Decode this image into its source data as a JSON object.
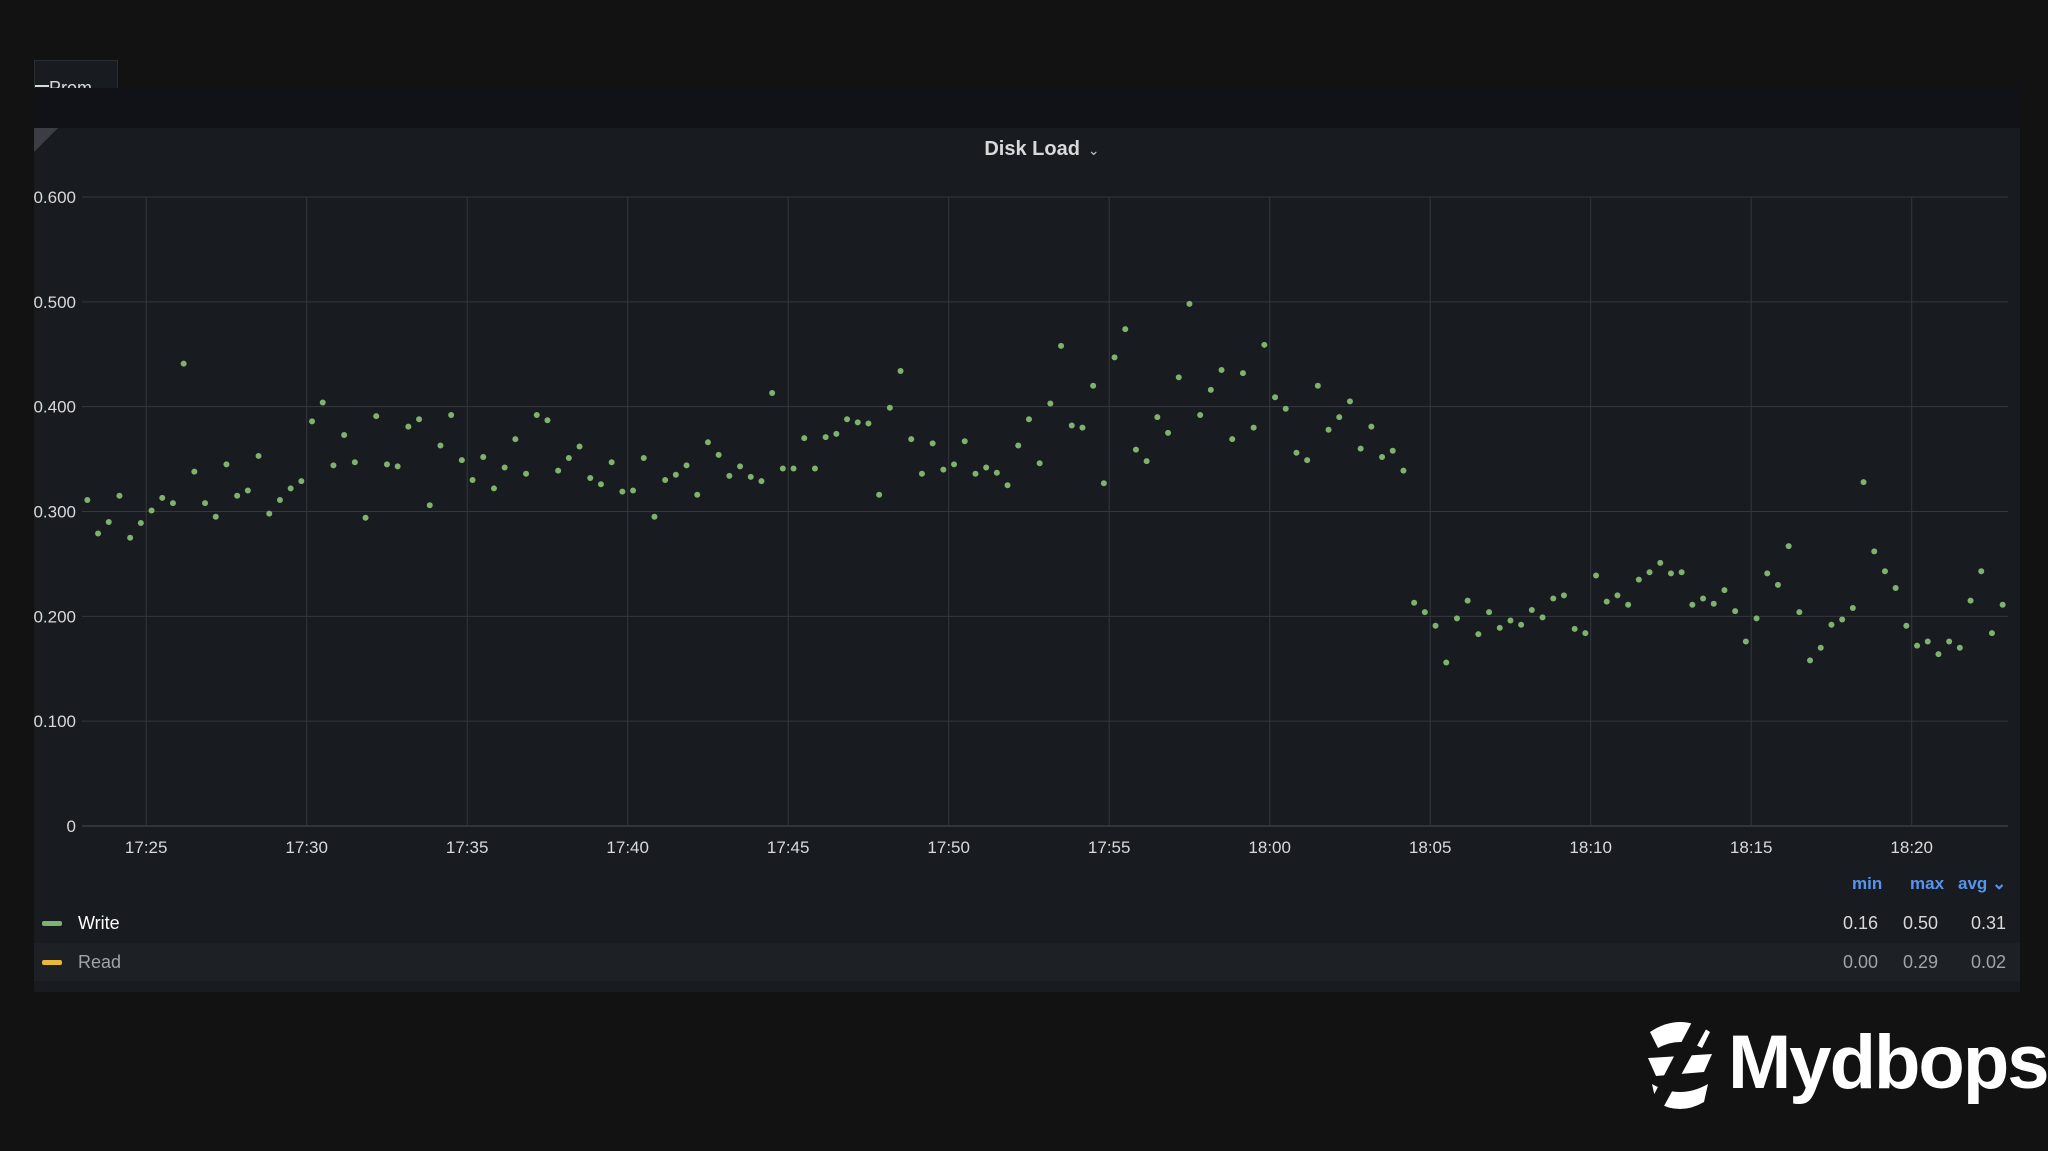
{
  "panel": {
    "tab_label": "Prom",
    "title": "Disk Load",
    "title_chevron": "⌄"
  },
  "legend": {
    "headers": {
      "min": "min",
      "max": "max",
      "avg": "avg ⌄"
    },
    "items": [
      {
        "name": "Write",
        "color": "#7eb26d",
        "min": "0.16",
        "max": "0.50",
        "avg": "0.31"
      },
      {
        "name": "Read",
        "color": "#eab839",
        "min": "0.00",
        "max": "0.29",
        "avg": "0.02"
      }
    ]
  },
  "brand": {
    "logo_text": "Mydbops"
  },
  "colors": {
    "background": "#121212",
    "panel": "#181b1f",
    "grid": "#3a3d42",
    "write": "#7eb26d",
    "read": "#eab839",
    "accent": "#5794f2"
  },
  "chart_data": {
    "type": "scatter",
    "title": "Disk Load",
    "xlabel": "",
    "ylabel": "",
    "x_unit": "minutes",
    "x_start": "17:23",
    "xlim": [
      "17:23",
      "18:23"
    ],
    "ylim": [
      0,
      0.6
    ],
    "y_ticks": [
      "0",
      "0.100",
      "0.200",
      "0.300",
      "0.400",
      "0.500",
      "0.600"
    ],
    "x_ticks": [
      "17:25",
      "17:30",
      "17:35",
      "17:40",
      "17:45",
      "17:50",
      "17:55",
      "18:00",
      "18:05",
      "18:10",
      "18:15",
      "18:20"
    ],
    "grid": true,
    "legend_position": "bottom",
    "series": [
      {
        "name": "Write",
        "color": "#7eb26d",
        "points": [
          [
            "17:23:10",
            0.311
          ],
          [
            "17:23:30",
            0.279
          ],
          [
            "17:23:50",
            0.29
          ],
          [
            "17:24:10",
            0.315
          ],
          [
            "17:24:30",
            0.275
          ],
          [
            "17:24:50",
            0.289
          ],
          [
            "17:25:10",
            0.301
          ],
          [
            "17:25:30",
            0.313
          ],
          [
            "17:25:50",
            0.308
          ],
          [
            "17:26:10",
            0.441
          ],
          [
            "17:26:30",
            0.338
          ],
          [
            "17:26:50",
            0.308
          ],
          [
            "17:27:10",
            0.295
          ],
          [
            "17:27:30",
            0.345
          ],
          [
            "17:27:50",
            0.315
          ],
          [
            "17:28:10",
            0.32
          ],
          [
            "17:28:30",
            0.353
          ],
          [
            "17:28:50",
            0.298
          ],
          [
            "17:29:10",
            0.311
          ],
          [
            "17:29:30",
            0.322
          ],
          [
            "17:29:50",
            0.329
          ],
          [
            "17:30:10",
            0.386
          ],
          [
            "17:30:30",
            0.404
          ],
          [
            "17:30:50",
            0.344
          ],
          [
            "17:31:10",
            0.373
          ],
          [
            "17:31:30",
            0.347
          ],
          [
            "17:31:50",
            0.294
          ],
          [
            "17:32:10",
            0.391
          ],
          [
            "17:32:30",
            0.345
          ],
          [
            "17:32:50",
            0.343
          ],
          [
            "17:33:10",
            0.381
          ],
          [
            "17:33:30",
            0.388
          ],
          [
            "17:33:50",
            0.306
          ],
          [
            "17:34:10",
            0.363
          ],
          [
            "17:34:30",
            0.392
          ],
          [
            "17:34:50",
            0.349
          ],
          [
            "17:35:10",
            0.33
          ],
          [
            "17:35:30",
            0.352
          ],
          [
            "17:35:50",
            0.322
          ],
          [
            "17:36:10",
            0.342
          ],
          [
            "17:36:30",
            0.369
          ],
          [
            "17:36:50",
            0.336
          ],
          [
            "17:37:10",
            0.392
          ],
          [
            "17:37:30",
            0.387
          ],
          [
            "17:37:50",
            0.339
          ],
          [
            "17:38:10",
            0.351
          ],
          [
            "17:38:30",
            0.362
          ],
          [
            "17:38:50",
            0.332
          ],
          [
            "17:39:10",
            0.326
          ],
          [
            "17:39:30",
            0.347
          ],
          [
            "17:39:50",
            0.319
          ],
          [
            "17:40:10",
            0.32
          ],
          [
            "17:40:30",
            0.351
          ],
          [
            "17:40:50",
            0.295
          ],
          [
            "17:41:10",
            0.33
          ],
          [
            "17:41:30",
            0.335
          ],
          [
            "17:41:50",
            0.344
          ],
          [
            "17:42:10",
            0.316
          ],
          [
            "17:42:30",
            0.366
          ],
          [
            "17:42:50",
            0.354
          ],
          [
            "17:43:10",
            0.334
          ],
          [
            "17:43:30",
            0.343
          ],
          [
            "17:43:50",
            0.333
          ],
          [
            "17:44:10",
            0.329
          ],
          [
            "17:44:30",
            0.413
          ],
          [
            "17:44:50",
            0.341
          ],
          [
            "17:45:10",
            0.341
          ],
          [
            "17:45:30",
            0.37
          ],
          [
            "17:45:50",
            0.341
          ],
          [
            "17:46:10",
            0.371
          ],
          [
            "17:46:30",
            0.374
          ],
          [
            "17:46:50",
            0.388
          ],
          [
            "17:47:10",
            0.385
          ],
          [
            "17:47:30",
            0.384
          ],
          [
            "17:47:50",
            0.316
          ],
          [
            "17:48:10",
            0.399
          ],
          [
            "17:48:30",
            0.434
          ],
          [
            "17:48:50",
            0.369
          ],
          [
            "17:49:10",
            0.336
          ],
          [
            "17:49:30",
            0.365
          ],
          [
            "17:49:50",
            0.34
          ],
          [
            "17:50:10",
            0.345
          ],
          [
            "17:50:30",
            0.367
          ],
          [
            "17:50:50",
            0.336
          ],
          [
            "17:51:10",
            0.342
          ],
          [
            "17:51:30",
            0.337
          ],
          [
            "17:51:50",
            0.325
          ],
          [
            "17:52:10",
            0.363
          ],
          [
            "17:52:30",
            0.388
          ],
          [
            "17:52:50",
            0.346
          ],
          [
            "17:53:10",
            0.403
          ],
          [
            "17:53:30",
            0.458
          ],
          [
            "17:53:50",
            0.382
          ],
          [
            "17:54:10",
            0.38
          ],
          [
            "17:54:30",
            0.42
          ],
          [
            "17:54:50",
            0.327
          ],
          [
            "17:55:10",
            0.447
          ],
          [
            "17:55:30",
            0.474
          ],
          [
            "17:55:50",
            0.359
          ],
          [
            "17:56:10",
            0.348
          ],
          [
            "17:56:30",
            0.39
          ],
          [
            "17:56:50",
            0.375
          ],
          [
            "17:57:10",
            0.428
          ],
          [
            "17:57:30",
            0.498
          ],
          [
            "17:57:50",
            0.392
          ],
          [
            "17:58:10",
            0.416
          ],
          [
            "17:58:30",
            0.435
          ],
          [
            "17:58:50",
            0.369
          ],
          [
            "17:59:10",
            0.432
          ],
          [
            "17:59:30",
            0.38
          ],
          [
            "17:59:50",
            0.459
          ],
          [
            "18:00:10",
            0.409
          ],
          [
            "18:00:30",
            0.398
          ],
          [
            "18:00:50",
            0.356
          ],
          [
            "18:01:10",
            0.349
          ],
          [
            "18:01:30",
            0.42
          ],
          [
            "18:01:50",
            0.378
          ],
          [
            "18:02:10",
            0.39
          ],
          [
            "18:02:30",
            0.405
          ],
          [
            "18:02:50",
            0.36
          ],
          [
            "18:03:10",
            0.381
          ],
          [
            "18:03:30",
            0.352
          ],
          [
            "18:03:50",
            0.358
          ],
          [
            "18:04:10",
            0.339
          ],
          [
            "18:04:30",
            0.213
          ],
          [
            "18:04:50",
            0.204
          ],
          [
            "18:05:10",
            0.191
          ],
          [
            "18:05:30",
            0.156
          ],
          [
            "18:05:50",
            0.198
          ],
          [
            "18:06:10",
            0.215
          ],
          [
            "18:06:30",
            0.183
          ],
          [
            "18:06:50",
            0.204
          ],
          [
            "18:07:10",
            0.189
          ],
          [
            "18:07:30",
            0.196
          ],
          [
            "18:07:50",
            0.192
          ],
          [
            "18:08:10",
            0.206
          ],
          [
            "18:08:30",
            0.199
          ],
          [
            "18:08:50",
            0.217
          ],
          [
            "18:09:10",
            0.22
          ],
          [
            "18:09:30",
            0.188
          ],
          [
            "18:09:50",
            0.184
          ],
          [
            "18:10:10",
            0.239
          ],
          [
            "18:10:30",
            0.214
          ],
          [
            "18:10:50",
            0.22
          ],
          [
            "18:11:10",
            0.211
          ],
          [
            "18:11:30",
            0.235
          ],
          [
            "18:11:50",
            0.242
          ],
          [
            "18:12:10",
            0.251
          ],
          [
            "18:12:30",
            0.241
          ],
          [
            "18:12:50",
            0.242
          ],
          [
            "18:13:10",
            0.211
          ],
          [
            "18:13:30",
            0.217
          ],
          [
            "18:13:50",
            0.212
          ],
          [
            "18:14:10",
            0.225
          ],
          [
            "18:14:30",
            0.205
          ],
          [
            "18:14:50",
            0.176
          ],
          [
            "18:15:10",
            0.198
          ],
          [
            "18:15:30",
            0.241
          ],
          [
            "18:15:50",
            0.23
          ],
          [
            "18:16:10",
            0.267
          ],
          [
            "18:16:30",
            0.204
          ],
          [
            "18:16:50",
            0.158
          ],
          [
            "18:17:10",
            0.17
          ],
          [
            "18:17:30",
            0.192
          ],
          [
            "18:17:50",
            0.197
          ],
          [
            "18:18:10",
            0.208
          ],
          [
            "18:18:30",
            0.328
          ],
          [
            "18:18:50",
            0.262
          ],
          [
            "18:19:10",
            0.243
          ],
          [
            "18:19:30",
            0.227
          ],
          [
            "18:19:50",
            0.191
          ],
          [
            "18:20:10",
            0.172
          ],
          [
            "18:20:30",
            0.176
          ],
          [
            "18:20:50",
            0.164
          ],
          [
            "18:21:10",
            0.176
          ],
          [
            "18:21:30",
            0.17
          ],
          [
            "18:21:50",
            0.215
          ],
          [
            "18:22:10",
            0.243
          ],
          [
            "18:22:30",
            0.184
          ],
          [
            "18:22:50",
            0.211
          ]
        ]
      }
    ]
  }
}
